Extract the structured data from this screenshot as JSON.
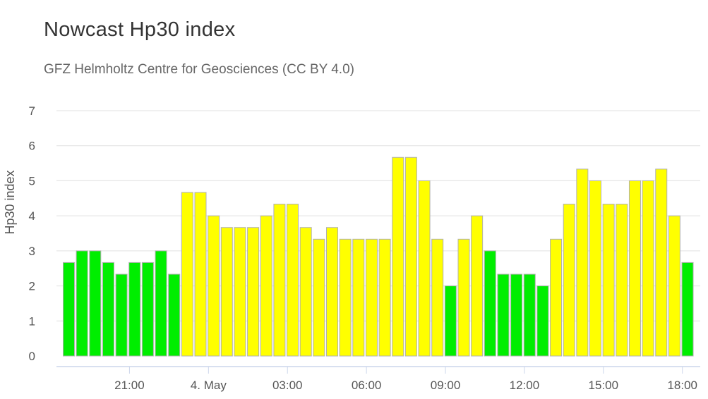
{
  "colors": {
    "low": "#00ee00",
    "high": "#ffff00",
    "bar_stroke": "#b0b0b0",
    "grid": "#e0e0e0",
    "axis": "#ccd6eb"
  },
  "chart_data": {
    "type": "bar",
    "title": "Nowcast Hp30 index",
    "subtitle": "GFZ Helmholtz Centre for Geosciences (CC BY 4.0)",
    "ylabel": "Hp30 index",
    "ylim": [
      0,
      7
    ],
    "yticks": [
      "0",
      "1",
      "2",
      "3",
      "4",
      "5",
      "6",
      "7"
    ],
    "x_ticks": [
      {
        "label": "21:00",
        "index": 5
      },
      {
        "label": "4. May",
        "index": 11
      },
      {
        "label": "03:00",
        "index": 17
      },
      {
        "label": "06:00",
        "index": 23
      },
      {
        "label": "09:00",
        "index": 29
      },
      {
        "label": "12:00",
        "index": 35
      },
      {
        "label": "15:00",
        "index": 41
      },
      {
        "label": "18:00",
        "index": 47
      }
    ],
    "color_threshold_note": "green bars below 4.67 where index < 4 at reading; yellow from the 4. May 00:00 rise onward except green periods",
    "values": [
      2.667,
      3.0,
      3.0,
      2.667,
      2.333,
      2.667,
      2.667,
      3.0,
      2.333,
      4.667,
      4.667,
      4.0,
      3.667,
      3.667,
      3.667,
      4.0,
      4.333,
      4.333,
      3.667,
      3.333,
      3.667,
      3.333,
      3.333,
      3.333,
      3.333,
      5.667,
      5.667,
      5.0,
      3.333,
      2.0,
      3.333,
      4.0,
      3.0,
      2.333,
      2.333,
      2.333,
      2.0,
      3.333,
      4.333,
      5.333,
      5.0,
      4.333,
      4.333,
      5.0,
      5.0,
      5.333,
      4.0,
      2.667
    ],
    "bar_colors": [
      "low",
      "low",
      "low",
      "low",
      "low",
      "low",
      "low",
      "low",
      "low",
      "high",
      "high",
      "high",
      "high",
      "high",
      "high",
      "high",
      "high",
      "high",
      "high",
      "high",
      "high",
      "high",
      "high",
      "high",
      "high",
      "high",
      "high",
      "high",
      "high",
      "low",
      "high",
      "high",
      "low",
      "low",
      "low",
      "low",
      "low",
      "high",
      "high",
      "high",
      "high",
      "high",
      "high",
      "high",
      "high",
      "high",
      "high",
      "low"
    ]
  }
}
